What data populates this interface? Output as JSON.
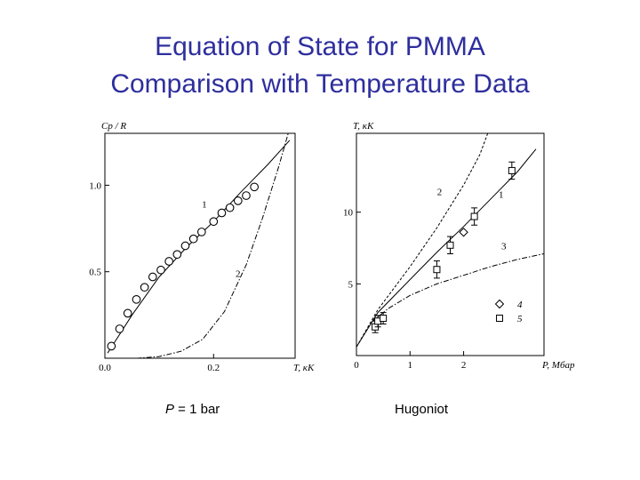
{
  "slide": {
    "title_line1": "Equation of State for PMMA",
    "title_line2": "Comparison with Temperature Data",
    "caption_left_var": "P",
    "caption_left_rest": " = 1 bar",
    "caption_right": "Hugoniot"
  },
  "colors": {
    "title": "#2e2e9e",
    "ink": "#000000"
  },
  "chart_data": [
    {
      "type": "line",
      "title": "",
      "xlabel": "T, кK",
      "ylabel": "Cp / R",
      "xlim": [
        0.0,
        0.35
      ],
      "ylim": [
        0.0,
        1.3
      ],
      "xticks": [
        {
          "v": 0.0,
          "label": "0.0"
        },
        {
          "v": 0.2,
          "label": "0.2"
        }
      ],
      "yticks": [
        {
          "v": 0.5,
          "label": "0.5"
        },
        {
          "v": 1.0,
          "label": "1.0"
        }
      ],
      "grid": false,
      "series": [
        {
          "name": "1",
          "style": "solid",
          "x": [
            0.005,
            0.05,
            0.1,
            0.15,
            0.2,
            0.25,
            0.3,
            0.34
          ],
          "y": [
            0.03,
            0.25,
            0.47,
            0.64,
            0.79,
            0.96,
            1.12,
            1.26
          ]
        },
        {
          "name": "2",
          "style": "dashdot",
          "x": [
            0.02,
            0.06,
            0.1,
            0.14,
            0.18,
            0.22,
            0.26,
            0.29,
            0.32,
            0.34
          ],
          "y": [
            0.0,
            0.0,
            0.01,
            0.04,
            0.11,
            0.27,
            0.54,
            0.81,
            1.11,
            1.33
          ]
        }
      ],
      "points": {
        "marker": "circle",
        "x": [
          0.012,
          0.027,
          0.042,
          0.058,
          0.073,
          0.088,
          0.103,
          0.118,
          0.133,
          0.148,
          0.163,
          0.178,
          0.2,
          0.215,
          0.23,
          0.245,
          0.26,
          0.275
        ],
        "y": [
          0.07,
          0.17,
          0.26,
          0.34,
          0.41,
          0.47,
          0.51,
          0.56,
          0.6,
          0.65,
          0.69,
          0.73,
          0.79,
          0.84,
          0.87,
          0.91,
          0.94,
          0.99
        ]
      },
      "annotations": [
        {
          "text": "1",
          "x": 0.183,
          "y": 0.87
        },
        {
          "text": "2",
          "x": 0.245,
          "y": 0.47
        }
      ]
    },
    {
      "type": "line",
      "title": "",
      "xlabel": "P, Мбар",
      "ylabel": "T, кK",
      "xlim": [
        0,
        3.5
      ],
      "ylim": [
        0,
        15.5
      ],
      "xticks": [
        {
          "v": 0,
          "label": "0"
        },
        {
          "v": 1,
          "label": "1"
        },
        {
          "v": 2,
          "label": "2"
        }
      ],
      "yticks": [
        {
          "v": 5,
          "label": "5"
        },
        {
          "v": 10,
          "label": "10"
        }
      ],
      "grid": false,
      "series": [
        {
          "name": "1",
          "style": "solid",
          "x": [
            0,
            0.4,
            1.0,
            1.5,
            2.0,
            2.5,
            3.0,
            3.35
          ],
          "y": [
            0.6,
            3.0,
            5.3,
            7.2,
            9.0,
            10.9,
            12.8,
            14.4
          ]
        },
        {
          "name": "2",
          "style": "dashed",
          "x": [
            0,
            0.4,
            1.0,
            1.5,
            2.0,
            2.3,
            2.45
          ],
          "y": [
            0.6,
            3.2,
            6.2,
            8.9,
            11.9,
            14.0,
            15.5
          ]
        },
        {
          "name": "3",
          "style": "dashdot",
          "x": [
            0.3,
            0.6,
            1.0,
            1.5,
            2.0,
            2.5,
            3.0,
            3.5
          ],
          "y": [
            2.4,
            3.3,
            4.2,
            5.0,
            5.6,
            6.2,
            6.7,
            7.1
          ]
        }
      ],
      "points_diamond": {
        "marker": "diamond",
        "x": [
          2.0
        ],
        "y": [
          8.6
        ]
      },
      "points_square": {
        "marker": "square",
        "x": [
          0.35,
          0.4,
          0.5,
          1.5,
          1.75,
          2.2,
          2.9
        ],
        "y": [
          2.0,
          2.4,
          2.6,
          6.0,
          7.7,
          9.7,
          12.9
        ],
        "err": [
          0.4,
          0.4,
          0.4,
          0.6,
          0.6,
          0.6,
          0.6
        ]
      },
      "annotations": [
        {
          "text": "2",
          "x": 1.55,
          "y": 11.2
        },
        {
          "text": "1",
          "x": 2.7,
          "y": 11.0
        },
        {
          "text": "3",
          "x": 2.75,
          "y": 7.4
        }
      ],
      "legend": [
        {
          "marker": "diamond",
          "label": "4"
        },
        {
          "marker": "square",
          "label": "5"
        }
      ],
      "legend_position": "lower-right"
    }
  ]
}
